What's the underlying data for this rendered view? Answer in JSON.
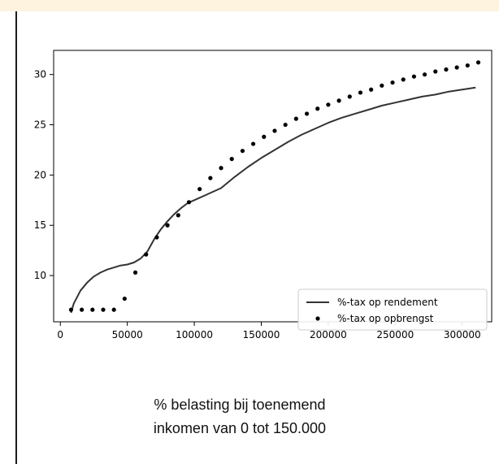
{
  "chart_data": {
    "type": "line",
    "title": "",
    "xlabel": "",
    "ylabel": "",
    "xlim": [
      -5000,
      322000
    ],
    "ylim": [
      5.4,
      32.4
    ],
    "x_ticks": [
      {
        "value": 0,
        "label": "0"
      },
      {
        "value": 50000,
        "label": "50000"
      },
      {
        "value": 100000,
        "label": "100000"
      },
      {
        "value": 150000,
        "label": "150000"
      },
      {
        "value": 200000,
        "label": "200000"
      },
      {
        "value": 250000,
        "label": "250000"
      },
      {
        "value": 300000,
        "label": "300000"
      }
    ],
    "y_ticks": [
      {
        "value": 10,
        "label": "10"
      },
      {
        "value": 15,
        "label": "15"
      },
      {
        "value": 20,
        "label": "20"
      },
      {
        "value": 25,
        "label": "25"
      },
      {
        "value": 30,
        "label": "30"
      }
    ],
    "grid": false,
    "legend_position": "lower-right",
    "series": [
      {
        "name": "%-tax op rendement",
        "style": "line",
        "color": "#333333",
        "x": [
          8000,
          10000,
          15000,
          20000,
          25000,
          30000,
          35000,
          40000,
          45000,
          50000,
          55000,
          60000,
          65000,
          70000,
          75000,
          80000,
          85000,
          90000,
          95000,
          100000,
          110000,
          120000,
          130000,
          140000,
          150000,
          160000,
          170000,
          180000,
          190000,
          200000,
          210000,
          220000,
          230000,
          240000,
          250000,
          260000,
          270000,
          280000,
          290000,
          300000,
          310000
        ],
        "y": [
          6.3,
          7.2,
          8.5,
          9.3,
          9.9,
          10.3,
          10.6,
          10.8,
          11.0,
          11.1,
          11.3,
          11.7,
          12.4,
          13.6,
          14.6,
          15.4,
          16.1,
          16.7,
          17.2,
          17.5,
          18.1,
          18.7,
          19.8,
          20.8,
          21.7,
          22.5,
          23.3,
          24.0,
          24.6,
          25.2,
          25.7,
          26.1,
          26.5,
          26.9,
          27.2,
          27.5,
          27.8,
          28.0,
          28.3,
          28.5,
          28.7
        ]
      },
      {
        "name": "%-tax op opbrengst",
        "style": "markers",
        "color": "#000000",
        "x": [
          8000,
          16000,
          24000,
          32000,
          40000,
          48000,
          56000,
          64000,
          72000,
          80000,
          88000,
          96000,
          104000,
          112000,
          120000,
          128000,
          136000,
          144000,
          152000,
          160000,
          168000,
          176000,
          184000,
          192000,
          200000,
          208000,
          216000,
          224000,
          232000,
          240000,
          248000,
          256000,
          264000,
          272000,
          280000,
          288000,
          296000,
          304000,
          312000
        ],
        "y": [
          6.6,
          6.6,
          6.6,
          6.6,
          6.6,
          7.7,
          10.3,
          12.1,
          13.8,
          15.0,
          16.0,
          17.3,
          18.6,
          19.7,
          20.7,
          21.6,
          22.4,
          23.1,
          23.8,
          24.4,
          25.0,
          25.6,
          26.1,
          26.6,
          27.0,
          27.4,
          27.8,
          28.2,
          28.5,
          28.9,
          29.2,
          29.5,
          29.8,
          30.0,
          30.3,
          30.5,
          30.7,
          30.9,
          31.2
        ]
      }
    ]
  },
  "caption": {
    "line1": "% belasting bij toenemend",
    "line2": "inkomen van 0 tot 150.000"
  }
}
